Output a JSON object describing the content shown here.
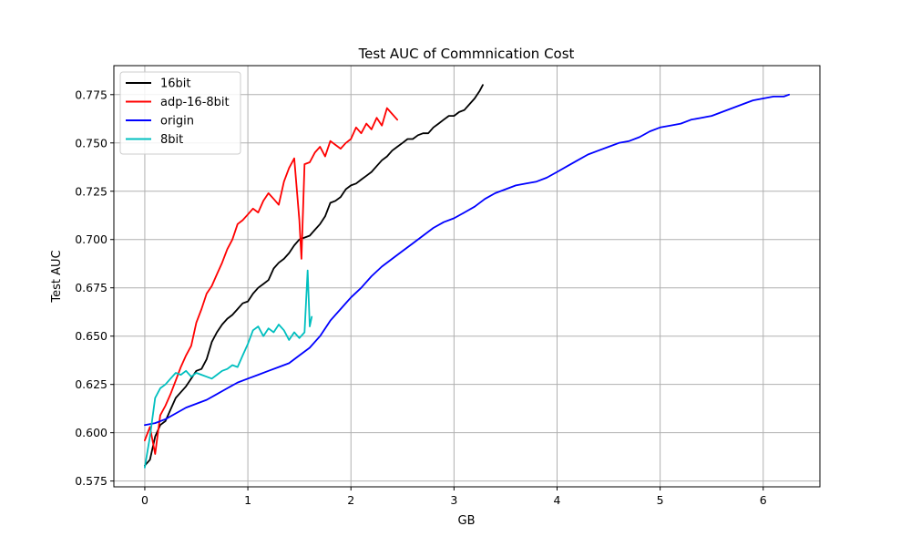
{
  "chart_data": {
    "type": "line",
    "title": "Test AUC of Commnication Cost",
    "xlabel": "GB",
    "ylabel": "Test AUC",
    "xlim": [
      -0.3,
      6.55
    ],
    "ylim": [
      0.572,
      0.79
    ],
    "xticks": [
      0,
      1,
      2,
      3,
      4,
      5,
      6
    ],
    "xtick_labels": [
      "0",
      "1",
      "2",
      "3",
      "4",
      "5",
      "6"
    ],
    "yticks": [
      0.575,
      0.6,
      0.625,
      0.65,
      0.675,
      0.7,
      0.725,
      0.75,
      0.775
    ],
    "ytick_labels": [
      "0.575",
      "0.600",
      "0.625",
      "0.650",
      "0.675",
      "0.700",
      "0.725",
      "0.750",
      "0.775"
    ],
    "grid": true,
    "legend_position": "top-left",
    "series": [
      {
        "name": "16bit",
        "color": "#000000",
        "x": [
          0.0,
          0.05,
          0.1,
          0.15,
          0.2,
          0.25,
          0.3,
          0.35,
          0.4,
          0.45,
          0.5,
          0.55,
          0.6,
          0.65,
          0.7,
          0.75,
          0.8,
          0.85,
          0.9,
          0.95,
          1.0,
          1.05,
          1.1,
          1.15,
          1.2,
          1.25,
          1.3,
          1.35,
          1.4,
          1.45,
          1.5,
          1.55,
          1.6,
          1.65,
          1.7,
          1.75,
          1.8,
          1.85,
          1.9,
          1.95,
          2.0,
          2.05,
          2.1,
          2.15,
          2.2,
          2.25,
          2.3,
          2.35,
          2.4,
          2.45,
          2.5,
          2.55,
          2.6,
          2.65,
          2.7,
          2.75,
          2.8,
          2.85,
          2.9,
          2.95,
          3.0,
          3.05,
          3.1,
          3.15,
          3.2,
          3.25,
          3.28
        ],
        "y": [
          0.583,
          0.586,
          0.598,
          0.604,
          0.606,
          0.612,
          0.618,
          0.621,
          0.624,
          0.628,
          0.632,
          0.633,
          0.638,
          0.647,
          0.652,
          0.656,
          0.659,
          0.661,
          0.664,
          0.667,
          0.668,
          0.672,
          0.675,
          0.677,
          0.679,
          0.685,
          0.688,
          0.69,
          0.693,
          0.697,
          0.7,
          0.701,
          0.702,
          0.705,
          0.708,
          0.712,
          0.719,
          0.72,
          0.722,
          0.726,
          0.728,
          0.729,
          0.731,
          0.733,
          0.735,
          0.738,
          0.741,
          0.743,
          0.746,
          0.748,
          0.75,
          0.752,
          0.752,
          0.754,
          0.755,
          0.755,
          0.758,
          0.76,
          0.762,
          0.764,
          0.764,
          0.766,
          0.767,
          0.77,
          0.773,
          0.777,
          0.78
        ]
      },
      {
        "name": "adp-16-8bit",
        "color": "#ff0000",
        "x": [
          0.0,
          0.05,
          0.1,
          0.15,
          0.2,
          0.25,
          0.3,
          0.35,
          0.4,
          0.45,
          0.5,
          0.55,
          0.6,
          0.65,
          0.7,
          0.75,
          0.8,
          0.85,
          0.9,
          0.95,
          1.0,
          1.05,
          1.1,
          1.15,
          1.2,
          1.25,
          1.3,
          1.35,
          1.4,
          1.45,
          1.5,
          1.52,
          1.55,
          1.6,
          1.65,
          1.7,
          1.75,
          1.8,
          1.85,
          1.9,
          1.95,
          2.0,
          2.05,
          2.1,
          2.15,
          2.2,
          2.25,
          2.3,
          2.35,
          2.4,
          2.45
        ],
        "y": [
          0.596,
          0.603,
          0.589,
          0.609,
          0.614,
          0.62,
          0.627,
          0.634,
          0.64,
          0.645,
          0.657,
          0.664,
          0.672,
          0.676,
          0.682,
          0.688,
          0.695,
          0.7,
          0.708,
          0.71,
          0.713,
          0.716,
          0.714,
          0.72,
          0.724,
          0.721,
          0.718,
          0.73,
          0.737,
          0.742,
          0.71,
          0.69,
          0.739,
          0.74,
          0.745,
          0.748,
          0.743,
          0.751,
          0.749,
          0.747,
          0.75,
          0.752,
          0.758,
          0.755,
          0.76,
          0.757,
          0.763,
          0.759,
          0.768,
          0.765,
          0.762
        ]
      },
      {
        "name": "origin",
        "color": "#0000ff",
        "x": [
          0.0,
          0.1,
          0.2,
          0.3,
          0.4,
          0.5,
          0.6,
          0.7,
          0.8,
          0.9,
          1.0,
          1.1,
          1.2,
          1.3,
          1.4,
          1.5,
          1.6,
          1.7,
          1.8,
          1.9,
          2.0,
          2.1,
          2.2,
          2.3,
          2.4,
          2.5,
          2.6,
          2.7,
          2.8,
          2.9,
          3.0,
          3.1,
          3.2,
          3.3,
          3.4,
          3.5,
          3.6,
          3.7,
          3.8,
          3.9,
          4.0,
          4.1,
          4.2,
          4.3,
          4.4,
          4.5,
          4.6,
          4.7,
          4.8,
          4.9,
          5.0,
          5.1,
          5.2,
          5.3,
          5.4,
          5.5,
          5.6,
          5.7,
          5.8,
          5.9,
          6.0,
          6.1,
          6.2,
          6.25
        ],
        "y": [
          0.604,
          0.605,
          0.607,
          0.61,
          0.613,
          0.615,
          0.617,
          0.62,
          0.623,
          0.626,
          0.628,
          0.63,
          0.632,
          0.634,
          0.636,
          0.64,
          0.644,
          0.65,
          0.658,
          0.664,
          0.67,
          0.675,
          0.681,
          0.686,
          0.69,
          0.694,
          0.698,
          0.702,
          0.706,
          0.709,
          0.711,
          0.714,
          0.717,
          0.721,
          0.724,
          0.726,
          0.728,
          0.729,
          0.73,
          0.732,
          0.735,
          0.738,
          0.741,
          0.744,
          0.746,
          0.748,
          0.75,
          0.751,
          0.753,
          0.756,
          0.758,
          0.759,
          0.76,
          0.762,
          0.763,
          0.764,
          0.766,
          0.768,
          0.77,
          0.772,
          0.773,
          0.774,
          0.774,
          0.775
        ]
      },
      {
        "name": "8bit",
        "color": "#00bfbf",
        "x": [
          0.0,
          0.05,
          0.1,
          0.15,
          0.2,
          0.25,
          0.3,
          0.35,
          0.4,
          0.45,
          0.5,
          0.55,
          0.6,
          0.65,
          0.7,
          0.75,
          0.8,
          0.85,
          0.9,
          0.95,
          1.0,
          1.05,
          1.1,
          1.15,
          1.2,
          1.25,
          1.3,
          1.35,
          1.4,
          1.45,
          1.5,
          1.55,
          1.58,
          1.6,
          1.62
        ],
        "y": [
          0.582,
          0.598,
          0.618,
          0.623,
          0.625,
          0.628,
          0.631,
          0.63,
          0.632,
          0.629,
          0.631,
          0.63,
          0.629,
          0.628,
          0.63,
          0.632,
          0.633,
          0.635,
          0.634,
          0.64,
          0.646,
          0.653,
          0.655,
          0.65,
          0.654,
          0.652,
          0.656,
          0.653,
          0.648,
          0.652,
          0.649,
          0.652,
          0.684,
          0.655,
          0.66
        ]
      }
    ]
  }
}
